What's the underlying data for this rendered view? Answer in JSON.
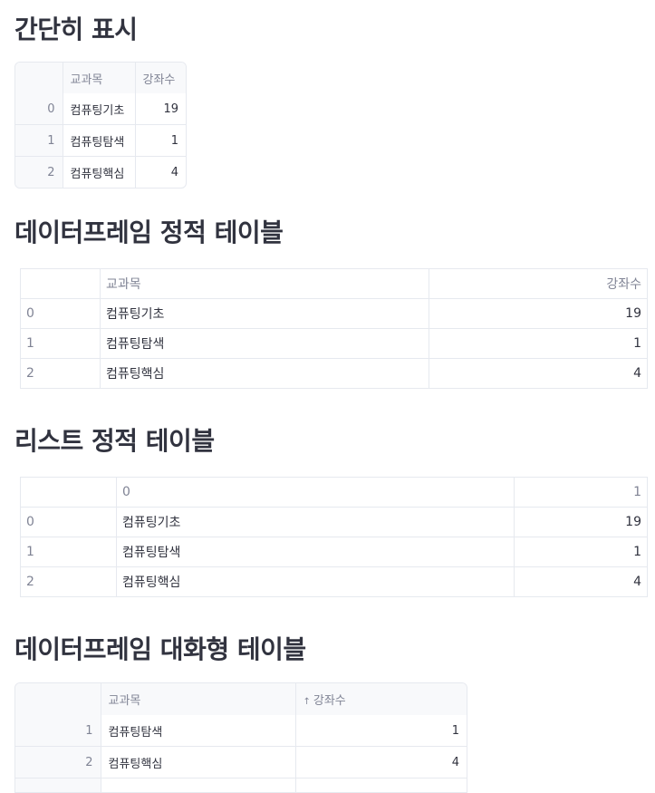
{
  "sections": [
    {
      "title": "간단히 표시"
    },
    {
      "title": "데이터프레임 정적 테이블"
    },
    {
      "title": "리스트 정적 테이블"
    },
    {
      "title": "데이터프레임 대화형 테이블"
    }
  ],
  "table1": {
    "headers": [
      "",
      "교과목",
      "강좌수"
    ],
    "rows": [
      {
        "index": "0",
        "subject": "컴퓨팅기초",
        "count": "19"
      },
      {
        "index": "1",
        "subject": "컴퓨팅탐색",
        "count": "1"
      },
      {
        "index": "2",
        "subject": "컴퓨팅핵심",
        "count": "4"
      }
    ]
  },
  "table2": {
    "headers": [
      "",
      "교과목",
      "강좌수"
    ],
    "rows": [
      {
        "index": "0",
        "subject": "컴퓨팅기초",
        "count": "19"
      },
      {
        "index": "1",
        "subject": "컴퓨팅탐색",
        "count": "1"
      },
      {
        "index": "2",
        "subject": "컴퓨팅핵심",
        "count": "4"
      }
    ]
  },
  "table3": {
    "headers": [
      "",
      "0",
      "1"
    ],
    "rows": [
      {
        "index": "0",
        "subject": "컴퓨팅기초",
        "count": "19"
      },
      {
        "index": "1",
        "subject": "컴퓨팅탐색",
        "count": "1"
      },
      {
        "index": "2",
        "subject": "컴퓨팅핵심",
        "count": "4"
      }
    ]
  },
  "table4": {
    "headers": [
      "",
      "교과목",
      "강좌수"
    ],
    "sort_icon": "sort-ascending-icon",
    "rows": [
      {
        "index": "1",
        "subject": "컴퓨팅탐색",
        "count": "1"
      },
      {
        "index": "2",
        "subject": "컴퓨팅핵심",
        "count": "4"
      }
    ]
  }
}
